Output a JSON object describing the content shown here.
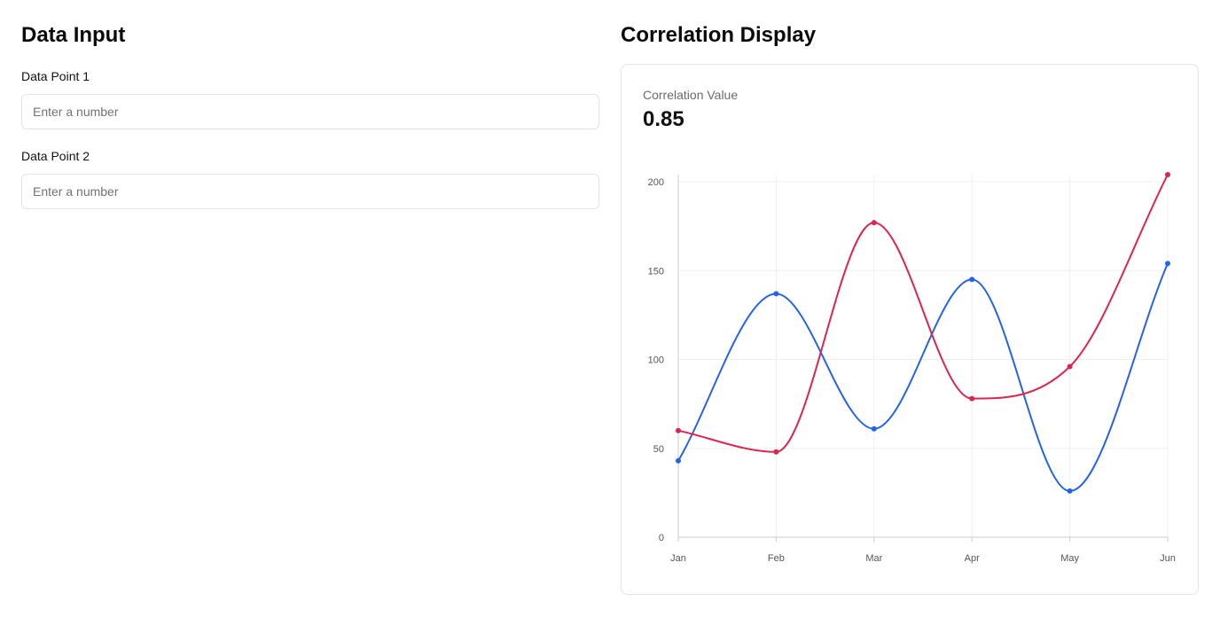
{
  "left_panel": {
    "title": "Data Input",
    "fields": [
      {
        "label": "Data Point 1",
        "value": "",
        "placeholder": "Enter a number"
      },
      {
        "label": "Data Point 2",
        "value": "",
        "placeholder": "Enter a number"
      }
    ]
  },
  "right_panel": {
    "title": "Correlation Display",
    "metric_label": "Correlation Value",
    "metric_value": "0.85"
  },
  "chart_data": {
    "type": "line",
    "categories": [
      "Jan",
      "Feb",
      "Mar",
      "Apr",
      "May",
      "Jun"
    ],
    "series": [
      {
        "color": "#2563eb",
        "values": [
          43,
          137,
          61,
          145,
          26,
          154
        ]
      },
      {
        "color": "#dc2650",
        "values": [
          60,
          48,
          177,
          78,
          96,
          204
        ]
      }
    ],
    "ylim": [
      0,
      200
    ],
    "yticks": [
      0,
      50,
      100,
      150,
      200
    ],
    "grid": true,
    "curve": "smooth",
    "markers": true
  }
}
